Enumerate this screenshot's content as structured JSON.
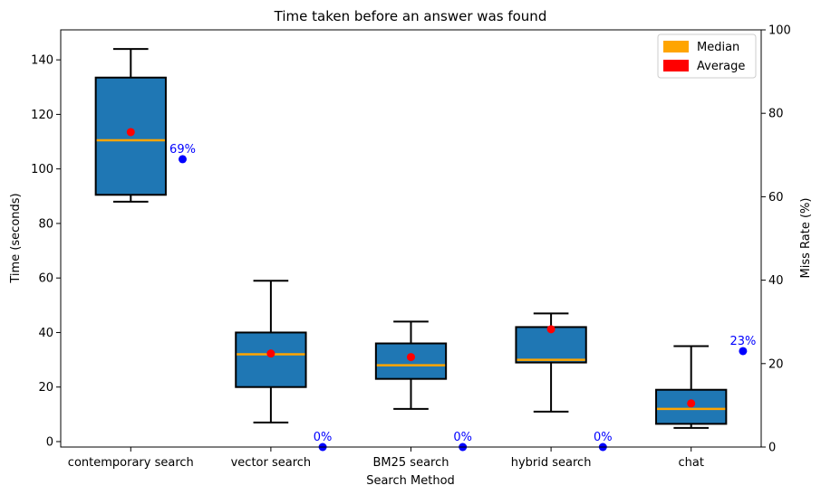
{
  "chart_data": {
    "type": "box",
    "title": "Time taken before an answer was found",
    "xlabel": "Search Method",
    "ylabel": "Time (seconds)",
    "y2label": "Miss Rate (%)",
    "ylim": [
      -2,
      151
    ],
    "y2lim": [
      0,
      100
    ],
    "yticks": [
      0,
      20,
      40,
      60,
      80,
      100,
      120,
      140
    ],
    "y2ticks": [
      0,
      20,
      40,
      60,
      80,
      100
    ],
    "grid": false,
    "legend_position": "top-right",
    "legend": [
      {
        "label": "Median",
        "color": "#ffa500"
      },
      {
        "label": "Average",
        "color": "#ff0000"
      }
    ],
    "colors": {
      "box_fill": "#1f77b4",
      "median": "#ffa500",
      "average": "#ff0000",
      "miss_rate": "#0000ff"
    },
    "categories": [
      "contemporary search",
      "vector search",
      "BM25 search",
      "hybrid search",
      "chat"
    ],
    "boxes": [
      {
        "whisker_low": 88,
        "q1": 90.5,
        "median": 110.5,
        "q3": 133.5,
        "whisker_high": 144,
        "average": 113.5
      },
      {
        "whisker_low": 7,
        "q1": 20,
        "median": 32,
        "q3": 40,
        "whisker_high": 59,
        "average": 32.3
      },
      {
        "whisker_low": 12,
        "q1": 23,
        "median": 28,
        "q3": 36,
        "whisker_high": 44,
        "average": 31
      },
      {
        "whisker_low": 11,
        "q1": 29,
        "median": 30,
        "q3": 42,
        "whisker_high": 47,
        "average": 41.2
      },
      {
        "whisker_low": 5,
        "q1": 6.5,
        "median": 12,
        "q3": 19,
        "whisker_high": 35,
        "average": 14
      }
    ],
    "miss_rate": {
      "values": [
        69,
        0,
        0,
        0,
        23
      ],
      "labels": [
        "69%",
        "0%",
        "0%",
        "0%",
        "23%"
      ]
    }
  }
}
